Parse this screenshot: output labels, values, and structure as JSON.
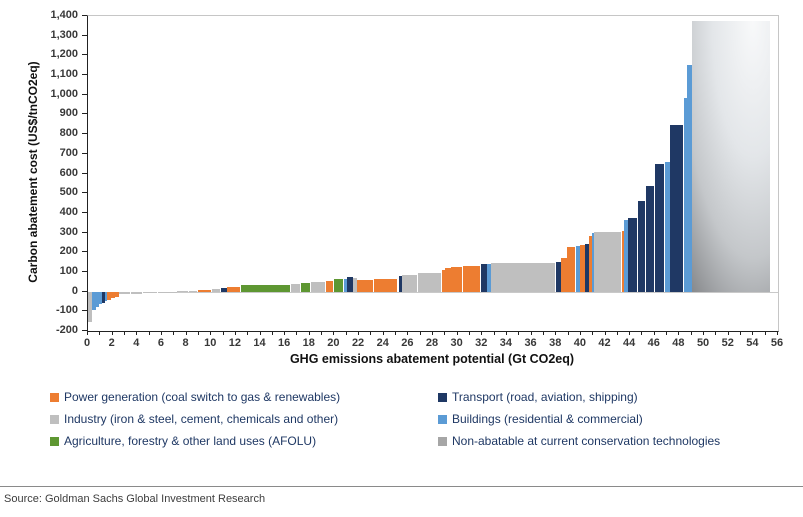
{
  "chart_data": {
    "type": "bar",
    "variant": "marginal-abatement-cost-curve",
    "xlabel": "GHG emissions abatement potential (Gt CO2eq)",
    "ylabel": "Carbon abatement cost (US$/tnCO2eq)",
    "xlim": [
      0,
      56
    ],
    "ylim": [
      -200,
      1400
    ],
    "x_tick_step": 2,
    "y_tick_step": 100,
    "grid": "off",
    "colors": {
      "power": "#ED7D31",
      "industry": "#BFBFBF",
      "agriculture": "#5E9732",
      "transport": "#1F3864",
      "buildings": "#5B9BD5",
      "nonabatable": "#A6A6A6"
    },
    "segments": [
      {
        "sector": "industry",
        "width": 0.3,
        "cost": -155
      },
      {
        "sector": "buildings",
        "width": 0.35,
        "cost": -95
      },
      {
        "sector": "buildings",
        "width": 0.25,
        "cost": -78
      },
      {
        "sector": "buildings",
        "width": 0.25,
        "cost": -64
      },
      {
        "sector": "transport",
        "width": 0.22,
        "cost": -58
      },
      {
        "sector": "buildings",
        "width": 0.18,
        "cost": -50
      },
      {
        "sector": "power",
        "width": 0.3,
        "cost": -44
      },
      {
        "sector": "power",
        "width": 0.35,
        "cost": -34
      },
      {
        "sector": "power",
        "width": 0.3,
        "cost": -25
      },
      {
        "sector": "industry",
        "width": 1.0,
        "cost": -13
      },
      {
        "sector": "industry",
        "width": 1.0,
        "cost": -10
      },
      {
        "sector": "industry",
        "width": 1.2,
        "cost": -7
      },
      {
        "sector": "industry",
        "width": 1.0,
        "cost": -4
      },
      {
        "sector": "industry",
        "width": 0.5,
        "cost": -2
      },
      {
        "sector": "industry",
        "width": 1.0,
        "cost": 2
      },
      {
        "sector": "industry",
        "width": 0.7,
        "cost": 4
      },
      {
        "sector": "power",
        "width": 1.2,
        "cost": 10
      },
      {
        "sector": "industry",
        "width": 0.7,
        "cost": 14
      },
      {
        "sector": "transport",
        "width": 0.5,
        "cost": 20
      },
      {
        "sector": "power",
        "width": 1.1,
        "cost": 26
      },
      {
        "sector": "agriculture",
        "width": 4.1,
        "cost": 36
      },
      {
        "sector": "industry",
        "width": 0.8,
        "cost": 38
      },
      {
        "sector": "agriculture",
        "width": 0.8,
        "cost": 43
      },
      {
        "sector": "industry",
        "width": 1.2,
        "cost": 50
      },
      {
        "sector": "power",
        "width": 0.7,
        "cost": 55
      },
      {
        "sector": "agriculture",
        "width": 0.8,
        "cost": 62
      },
      {
        "sector": "buildings",
        "width": 0.2,
        "cost": 66
      },
      {
        "sector": "transport",
        "width": 0.5,
        "cost": 76
      },
      {
        "sector": "industry",
        "width": 0.3,
        "cost": 70
      },
      {
        "sector": "power",
        "width": 1.4,
        "cost": 60
      },
      {
        "sector": "power",
        "width": 2.0,
        "cost": 64
      },
      {
        "sector": "transport",
        "width": 0.3,
        "cost": 80
      },
      {
        "sector": "industry",
        "width": 1.3,
        "cost": 86
      },
      {
        "sector": "industry",
        "width": 1.9,
        "cost": 96
      },
      {
        "sector": "power",
        "width": 0.3,
        "cost": 112
      },
      {
        "sector": "power",
        "width": 0.5,
        "cost": 121
      },
      {
        "sector": "power",
        "width": 0.9,
        "cost": 127
      },
      {
        "sector": "power",
        "width": 1.5,
        "cost": 132
      },
      {
        "sector": "transport",
        "width": 0.5,
        "cost": 139
      },
      {
        "sector": "buildings",
        "width": 0.3,
        "cost": 141
      },
      {
        "sector": "industry",
        "width": 5.3,
        "cost": 146
      },
      {
        "sector": "transport",
        "width": 0.4,
        "cost": 153
      },
      {
        "sector": "power",
        "width": 0.5,
        "cost": 170
      },
      {
        "sector": "power",
        "width": 0.7,
        "cost": 228
      },
      {
        "sector": "buildings",
        "width": 0.3,
        "cost": 234
      },
      {
        "sector": "power",
        "width": 0.4,
        "cost": 238
      },
      {
        "sector": "transport",
        "width": 0.4,
        "cost": 244
      },
      {
        "sector": "power",
        "width": 0.2,
        "cost": 285
      },
      {
        "sector": "buildings",
        "width": 0.2,
        "cost": 296
      },
      {
        "sector": "industry",
        "width": 2.2,
        "cost": 303
      },
      {
        "sector": "power",
        "width": 0.2,
        "cost": 307
      },
      {
        "sector": "buildings",
        "width": 0.3,
        "cost": 365
      },
      {
        "sector": "transport",
        "width": 0.8,
        "cost": 375
      },
      {
        "sector": "transport",
        "width": 0.7,
        "cost": 458
      },
      {
        "sector": "transport",
        "width": 0.7,
        "cost": 537
      },
      {
        "sector": "transport",
        "width": 0.8,
        "cost": 650
      },
      {
        "sector": "buildings",
        "width": 0.4,
        "cost": 660
      },
      {
        "sector": "transport",
        "width": 1.2,
        "cost": 845
      },
      {
        "sector": "buildings",
        "width": 0.2,
        "cost": 985
      },
      {
        "sector": "buildings",
        "width": 0.4,
        "cost": 1150
      },
      {
        "sector": "nonabatable",
        "width": 6.35,
        "cost": 1375
      }
    ]
  },
  "axes": {
    "y_title": "Carbon abatement cost (US$/tnCO2eq)",
    "x_title": "GHG emissions abatement potential (Gt CO2eq)"
  },
  "legend": {
    "column1": [
      {
        "sector": "power",
        "label": "Power generation (coal switch to gas & renewables)"
      },
      {
        "sector": "industry",
        "label": "Industry (iron & steel, cement, chemicals and other)"
      },
      {
        "sector": "agriculture",
        "label": "Agriculture, forestry & other land uses (AFOLU)"
      }
    ],
    "column2": [
      {
        "sector": "transport",
        "label": "Transport (road, aviation, shipping)"
      },
      {
        "sector": "buildings",
        "label": "Buildings (residential & commercial)"
      },
      {
        "sector": "nonabatable",
        "label": "Non-abatable at current conservation technologies"
      }
    ]
  },
  "footer": {
    "source": "Source: Goldman Sachs Global Investment Research"
  }
}
